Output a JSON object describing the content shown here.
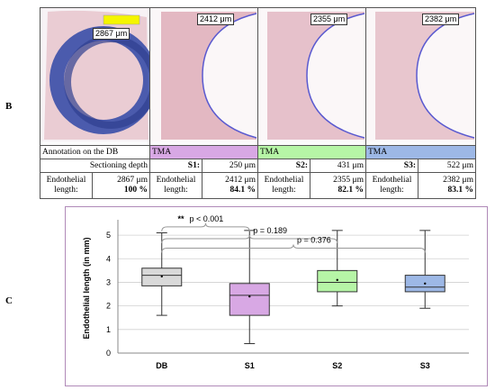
{
  "panels": {
    "b": "B",
    "c": "C"
  },
  "images": [
    {
      "label": "2867 μm",
      "key": "db"
    },
    {
      "label": "2412 μm",
      "key": "s1"
    },
    {
      "label": "2355 μm",
      "key": "s2"
    },
    {
      "label": "2382 μm",
      "key": "s3"
    }
  ],
  "table": {
    "row1": {
      "db": "Annotation on the DB",
      "s1": "TMA",
      "s2": "TMA",
      "s3": "TMA"
    },
    "row2": {
      "sect": "Sectioning depth",
      "s1_name": "S1:",
      "s1_val": "250 μm",
      "s2_name": "S2:",
      "s2_val": "431 μm",
      "s3_name": "S3:",
      "s3_val": "522 μm"
    },
    "row3": {
      "label_a": "Endothelial",
      "label_b": "length:",
      "db_len": "2867 μm",
      "db_pct": "100 %",
      "s1_len": "2412 μm",
      "s1_pct": "84.1 %",
      "s2_len": "2355 μm",
      "s2_pct": "82.1 %",
      "s3_len": "2382 μm",
      "s3_pct": "83.1 %"
    }
  },
  "colors": {
    "db": "#d9d9d9",
    "s1": "#d8a8e4",
    "s2": "#b6f5a6",
    "s3": "#9db8e6",
    "annotation_blue": "#3a4fa8",
    "tissue": "#e9c4cc"
  },
  "chart_data": {
    "type": "box",
    "ylabel": "Endothelial length (in mm)",
    "ylim": [
      0,
      5.5
    ],
    "yticks": [
      0,
      1,
      2,
      3,
      4,
      5
    ],
    "categories": [
      "DB",
      "S1",
      "S2",
      "S3"
    ],
    "boxes": [
      {
        "name": "DB",
        "min": 1.6,
        "q1": 2.85,
        "median": 3.3,
        "q3": 3.6,
        "max": 5.1,
        "mean": 3.25,
        "color": "#d9d9d9"
      },
      {
        "name": "S1",
        "min": 0.4,
        "q1": 1.6,
        "median": 2.45,
        "q3": 2.95,
        "max": 5.2,
        "mean": 2.4,
        "color": "#d8a8e4"
      },
      {
        "name": "S2",
        "min": 2.0,
        "q1": 2.6,
        "median": 3.0,
        "q3": 3.5,
        "max": 5.2,
        "mean": 3.1,
        "color": "#b6f5a6"
      },
      {
        "name": "S3",
        "min": 1.9,
        "q1": 2.6,
        "median": 2.8,
        "q3": 3.3,
        "max": 5.2,
        "mean": 2.95,
        "color": "#9db8e6"
      }
    ],
    "annotations": [
      {
        "stars": "**",
        "text": "p < 0.001",
        "from": "DB",
        "to": "S1"
      },
      {
        "text": "p = 0.189",
        "from": "DB",
        "to": "S2"
      },
      {
        "text": "p = 0.376",
        "from": "DB",
        "to": "S3"
      }
    ],
    "grid": true
  }
}
